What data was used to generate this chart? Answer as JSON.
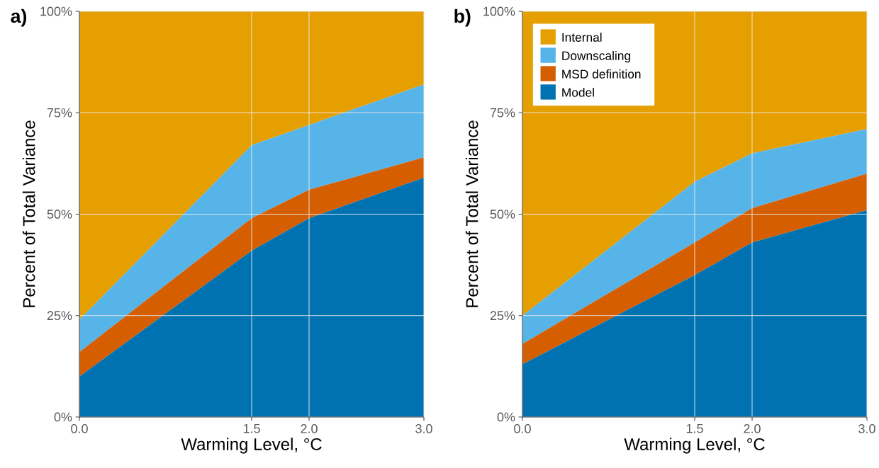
{
  "chart_data": [
    {
      "type": "area",
      "title": "a)",
      "xlabel": "Warming Level, °C",
      "ylabel": "Percent of Total Variance",
      "stacked": true,
      "x": [
        0,
        1.5,
        2,
        3
      ],
      "series": [
        {
          "color": "#0072b2",
          "values": [
            10,
            41,
            49,
            59
          ]
        },
        {
          "color": "#d55e00",
          "values": [
            6,
            8,
            7,
            5
          ]
        },
        {
          "color": "#56b4e9",
          "values": [
            8,
            18,
            16,
            18
          ]
        },
        {
          "color": "#e69f00",
          "values": [
            76,
            33,
            28,
            18
          ]
        }
      ],
      "xlim": [
        0,
        3
      ],
      "ylim": [
        0,
        100
      ],
      "xticks": [
        {
          "value": 0,
          "label": "0.0"
        },
        {
          "value": 1.5,
          "label": "1.5"
        },
        {
          "value": 2,
          "label": "2.0"
        },
        {
          "value": 3,
          "label": "3.0"
        }
      ],
      "yticks": [
        {
          "value": 0,
          "label": "0%"
        },
        {
          "value": 25,
          "label": "25%"
        },
        {
          "value": 50,
          "label": "50%"
        },
        {
          "value": 75,
          "label": "75%"
        },
        {
          "value": 100,
          "label": "100%"
        }
      ],
      "grid": true
    },
    {
      "type": "area",
      "title": "b)",
      "xlabel": "Warming Level, °C",
      "ylabel": "Percent of Total Variance",
      "stacked": true,
      "x": [
        0,
        1.5,
        2,
        3
      ],
      "series": [
        {
          "name": "Model",
          "color": "#0072b2",
          "values": [
            13,
            35,
            43,
            51
          ]
        },
        {
          "name": "MSD definition",
          "color": "#d55e00",
          "values": [
            5,
            8,
            8.5,
            9
          ]
        },
        {
          "name": "Downscaling",
          "color": "#56b4e9",
          "values": [
            7,
            15,
            13.5,
            11
          ]
        },
        {
          "name": "Internal",
          "color": "#e69f00",
          "values": [
            75,
            42,
            35,
            29
          ]
        }
      ],
      "xlim": [
        0,
        3
      ],
      "ylim": [
        0,
        100
      ],
      "xticks": [
        {
          "value": 0,
          "label": "0.0"
        },
        {
          "value": 1.5,
          "label": "1.5"
        },
        {
          "value": 2,
          "label": "2.0"
        },
        {
          "value": 3,
          "label": "3.0"
        }
      ],
      "yticks": [
        {
          "value": 0,
          "label": "0%"
        },
        {
          "value": 25,
          "label": "25%"
        },
        {
          "value": 50,
          "label": "50%"
        },
        {
          "value": 75,
          "label": "75%"
        },
        {
          "value": 100,
          "label": "100%"
        }
      ],
      "grid": true,
      "legend": "top left"
    }
  ]
}
